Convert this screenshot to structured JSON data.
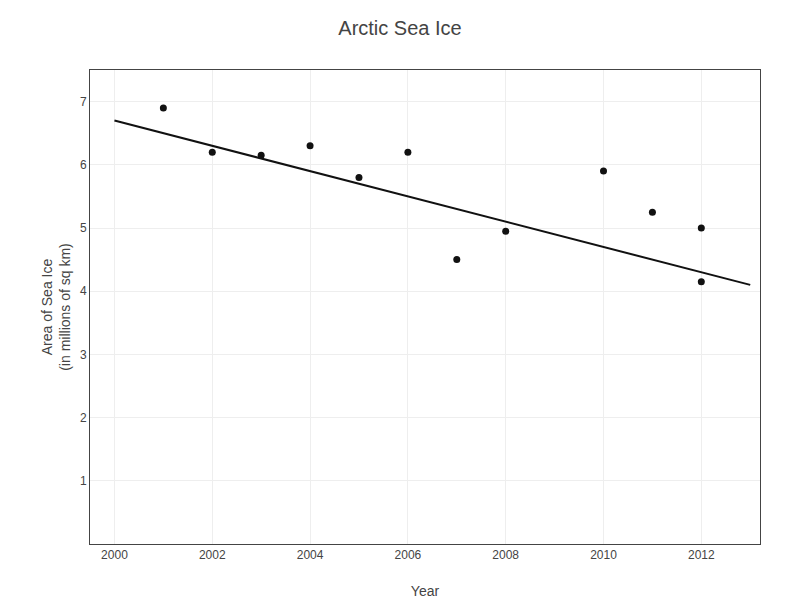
{
  "chart_data": {
    "type": "scatter",
    "title": "Arctic Sea Ice",
    "xlabel": "Year",
    "ylabel": "Area of Sea Ice\n(in millions of sq km)",
    "series": [
      {
        "type": "scatter",
        "color": "#111111",
        "x": [
          2001,
          2002,
          2003,
          2004,
          2005,
          2006,
          2007,
          2008,
          2010,
          2011,
          2012,
          2012
        ],
        "values": [
          6.9,
          6.2,
          6.15,
          6.3,
          5.8,
          6.2,
          4.5,
          4.95,
          5.9,
          5.25,
          5.0,
          4.15
        ]
      },
      {
        "type": "line",
        "color": "#111111",
        "x": [
          2000,
          2013
        ],
        "values": [
          6.7,
          4.1
        ]
      }
    ],
    "xlim": [
      1999.5,
      2013.2
    ],
    "ylim": [
      0,
      7.5
    ],
    "xticks": [
      2000,
      2002,
      2004,
      2006,
      2008,
      2010,
      2012
    ],
    "yticks": [
      1,
      2,
      3,
      4,
      5,
      6,
      7
    ],
    "grid": true
  }
}
